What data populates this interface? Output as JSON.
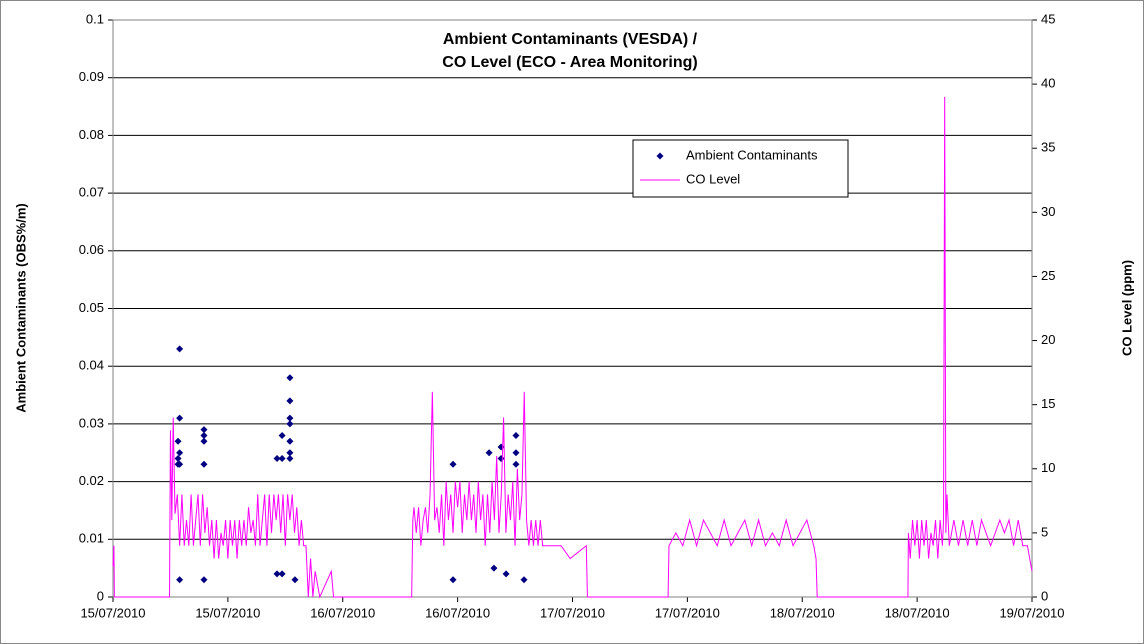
{
  "chart_data": {
    "type": "scatter",
    "title": [
      "Ambient Contaminants (VESDA) /",
      "CO Level (ECO - Area Monitoring)"
    ],
    "y_label": "Ambient Contaminants (OBS%/m)",
    "y2_label": "CO Level (ppm)",
    "xlim": [
      40374,
      40378
    ],
    "xticks": [
      {
        "value": 40374,
        "label": "15/07/2010"
      },
      {
        "value": 40374.5,
        "label": "15/07/2010"
      },
      {
        "value": 40375,
        "label": "16/07/2010"
      },
      {
        "value": 40375.5,
        "label": "16/07/2010"
      },
      {
        "value": 40376,
        "label": "17/07/2010"
      },
      {
        "value": 40376.5,
        "label": "17/07/2010"
      },
      {
        "value": 40377,
        "label": "18/07/2010"
      },
      {
        "value": 40377.5,
        "label": "18/07/2010"
      },
      {
        "value": 40378,
        "label": "19/07/2010"
      }
    ],
    "ylim": [
      0,
      0.1
    ],
    "yticks": [
      0,
      0.01,
      0.02,
      0.03,
      0.04,
      0.05,
      0.06,
      0.07,
      0.08,
      0.09,
      0.1
    ],
    "y2lim": [
      0,
      45
    ],
    "y2ticks": [
      0,
      5,
      10,
      15,
      20,
      25,
      30,
      35,
      40,
      45
    ],
    "grid": true,
    "legend": "upper right",
    "series": [
      {
        "name": "Ambient Contaminants",
        "type": "scatter",
        "color": "#000080",
        "x": [
          40374.283,
          40374.283,
          40374.283,
          40374.29,
          40374.29,
          40374.29,
          40374.29,
          40374.29,
          40374.396,
          40374.396,
          40374.396,
          40374.396,
          40374.396,
          40374.714,
          40374.736,
          40374.736,
          40374.714,
          40374.736,
          40374.77,
          40374.77,
          40374.77,
          40374.77,
          40374.77,
          40374.77,
          40374.77,
          40374.792,
          40375.48,
          40375.48,
          40375.637,
          40375.658,
          40375.689,
          40375.689,
          40375.711,
          40375.754,
          40375.754,
          40375.754,
          40375.789
        ],
        "values": [
          0.027,
          0.024,
          0.023,
          0.023,
          0.025,
          0.031,
          0.043,
          0.003,
          0.029,
          0.028,
          0.027,
          0.023,
          0.003,
          0.024,
          0.024,
          0.028,
          0.004,
          0.004,
          0.038,
          0.034,
          0.031,
          0.03,
          0.027,
          0.025,
          0.024,
          0.003,
          0.023,
          0.003,
          0.025,
          0.005,
          0.026,
          0.024,
          0.004,
          0.028,
          0.025,
          0.023,
          0.003
        ]
      },
      {
        "name": "CO Level",
        "type": "line",
        "color": "#ff00ff",
        "axis": "y2",
        "x": [
          40374,
          40374.004,
          40374.006,
          40374.246,
          40374.25,
          40374.256,
          40374.262,
          40374.27,
          40374.28,
          40374.29,
          40374.3,
          40374.31,
          40374.32,
          40374.33,
          40374.34,
          40374.35,
          40374.36,
          40374.37,
          40374.38,
          40374.39,
          40374.4,
          40374.41,
          40374.42,
          40374.43,
          40374.44,
          40374.45,
          40374.46,
          40374.47,
          40374.48,
          40374.49,
          40374.5,
          40374.51,
          40374.52,
          40374.53,
          40374.54,
          40374.55,
          40374.56,
          40374.57,
          40374.58,
          40374.59,
          40374.6,
          40374.61,
          40374.62,
          40374.63,
          40374.64,
          40374.65,
          40374.66,
          40374.67,
          40374.68,
          40374.69,
          40374.7,
          40374.71,
          40374.72,
          40374.73,
          40374.74,
          40374.75,
          40374.76,
          40374.77,
          40374.78,
          40374.79,
          40374.8,
          40374.81,
          40374.82,
          40374.83,
          40374.84,
          40374.85,
          40374.86,
          40374.87,
          40374.88,
          40374.9,
          40374.95,
          40374.96,
          40375.3,
          40375.305,
          40375.31,
          40375.32,
          40375.33,
          40375.34,
          40375.35,
          40375.36,
          40375.37,
          40375.38,
          40375.39,
          40375.4,
          40375.41,
          40375.42,
          40375.43,
          40375.44,
          40375.45,
          40375.46,
          40375.47,
          40375.48,
          40375.49,
          40375.5,
          40375.51,
          40375.52,
          40375.53,
          40375.54,
          40375.55,
          40375.56,
          40375.57,
          40375.58,
          40375.59,
          40375.6,
          40375.61,
          40375.62,
          40375.63,
          40375.64,
          40375.65,
          40375.66,
          40375.67,
          40375.68,
          40375.69,
          40375.7,
          40375.71,
          40375.72,
          40375.73,
          40375.74,
          40375.75,
          40375.76,
          40375.77,
          40375.78,
          40375.79,
          40375.8,
          40375.81,
          40375.82,
          40375.83,
          40375.84,
          40375.85,
          40375.86,
          40375.87,
          40375.95,
          40375.99,
          40376.06,
          40376.065,
          40376.416,
          40376.42,
          40376.45,
          40376.48,
          40376.51,
          40376.54,
          40376.57,
          40376.6,
          40376.63,
          40376.66,
          40376.69,
          40376.72,
          40376.75,
          40376.78,
          40376.81,
          40376.84,
          40376.87,
          40376.9,
          40376.93,
          40376.96,
          40376.99,
          40377.02,
          40377.05,
          40377.06,
          40377.065,
          40377.46,
          40377.462,
          40377.47,
          40377.48,
          40377.49,
          40377.5,
          40377.51,
          40377.52,
          40377.53,
          40377.54,
          40377.55,
          40377.56,
          40377.57,
          40377.58,
          40377.59,
          40377.6,
          40377.61,
          40377.615,
          40377.62,
          40377.625,
          40377.63,
          40377.64,
          40377.66,
          40377.68,
          40377.7,
          40377.72,
          40377.74,
          40377.76,
          40377.78,
          40377.8,
          40377.82,
          40377.84,
          40377.86,
          40377.88,
          40377.9,
          40377.92,
          40377.94,
          40377.96,
          40377.98,
          40377.99,
          40378
        ],
        "values": [
          2.4,
          4,
          0,
          0,
          13,
          6,
          14,
          6.5,
          8,
          4,
          8,
          4,
          6,
          4,
          8,
          4,
          6,
          8,
          4,
          8,
          5,
          7,
          4,
          6,
          3,
          6,
          3,
          5,
          4,
          6,
          3,
          6,
          4,
          6,
          3,
          6,
          4,
          6,
          4,
          7,
          5,
          6,
          4,
          8,
          4,
          6,
          8,
          4,
          8,
          5,
          8,
          6,
          8,
          5,
          8,
          4,
          8,
          6,
          8,
          5,
          7,
          4,
          6,
          4,
          4,
          0,
          3,
          0,
          2,
          0,
          2,
          0,
          0,
          6,
          7,
          5,
          7,
          4,
          6,
          7,
          5,
          8,
          16,
          6,
          7,
          5,
          8,
          4,
          9,
          6,
          8,
          5,
          9,
          7,
          9,
          5,
          8,
          6,
          9,
          6,
          8,
          5,
          9,
          6,
          8,
          4,
          8,
          5,
          9,
          6,
          11,
          5,
          8,
          14,
          5,
          8,
          6,
          9,
          4,
          10,
          6,
          8,
          16,
          6,
          4,
          6,
          4,
          6,
          4,
          6,
          4,
          4,
          3,
          4,
          0,
          0,
          4,
          5,
          4,
          6,
          4,
          6,
          5,
          4,
          6,
          4,
          5,
          6,
          4,
          6,
          4,
          5,
          4,
          6,
          4,
          5,
          6,
          4,
          3,
          0,
          0,
          5,
          3,
          6,
          4,
          6,
          3,
          6,
          4,
          6,
          3,
          5,
          4,
          6,
          3,
          6,
          4,
          6,
          39,
          5,
          8,
          4,
          6,
          4,
          6,
          4,
          6,
          4,
          6,
          5,
          4,
          5,
          6,
          5,
          6,
          4,
          6,
          4,
          4,
          3,
          2
        ]
      }
    ]
  }
}
